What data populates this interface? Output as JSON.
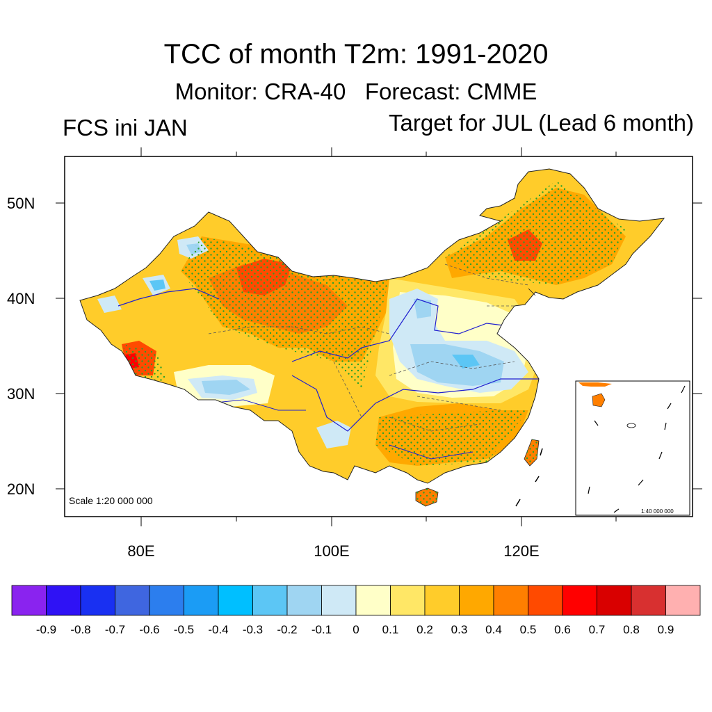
{
  "title": "TCC of month T2m: 1991-2020",
  "subtitle_monitor": "Monitor: CRA-40",
  "subtitle_forecast": "Forecast: CMME",
  "left_label": "FCS ini JAN",
  "right_label": "Target for JUL (Lead 6 month)",
  "lat_labels": [
    "50N",
    "40N",
    "30N",
    "20N"
  ],
  "lon_labels": [
    "80E",
    "100E",
    "120E"
  ],
  "scale_main": "Scale 1:20 000 000",
  "scale_inset": "1:40 000 000",
  "colorbar": {
    "labels": [
      "-0.9",
      "-0.8",
      "-0.7",
      "-0.6",
      "-0.5",
      "-0.4",
      "-0.3",
      "-0.2",
      "-0.1",
      "0",
      "0.1",
      "0.2",
      "0.3",
      "0.4",
      "0.5",
      "0.6",
      "0.7",
      "0.8",
      "0.9"
    ],
    "colors": [
      "#8a23ef",
      "#2f12f5",
      "#1930f2",
      "#3f66e0",
      "#2c7eee",
      "#1b9cf5",
      "#00bfff",
      "#5cc6f5",
      "#9fd5f2",
      "#cfe9f6",
      "#ffffc8",
      "#ffe766",
      "#ffcc2a",
      "#ffa800",
      "#ff7f00",
      "#ff4a00",
      "#ff0000",
      "#d90000",
      "#d83030",
      "#ffb0b0"
    ]
  },
  "palette": {
    "land_base": "#ffcc2a",
    "orange": "#ffa800",
    "dark_orange": "#ff7f00",
    "red_orange": "#ff4a00",
    "red": "#ff0000",
    "light_yellow": "#ffffc8",
    "yellow": "#ffe766",
    "pale_blue": "#cfe9f6",
    "light_blue": "#9fd5f2",
    "mid_blue": "#5cc6f5",
    "blue": "#1b9cf5",
    "stipple": "#2aa02a",
    "river": "#2020d0"
  }
}
